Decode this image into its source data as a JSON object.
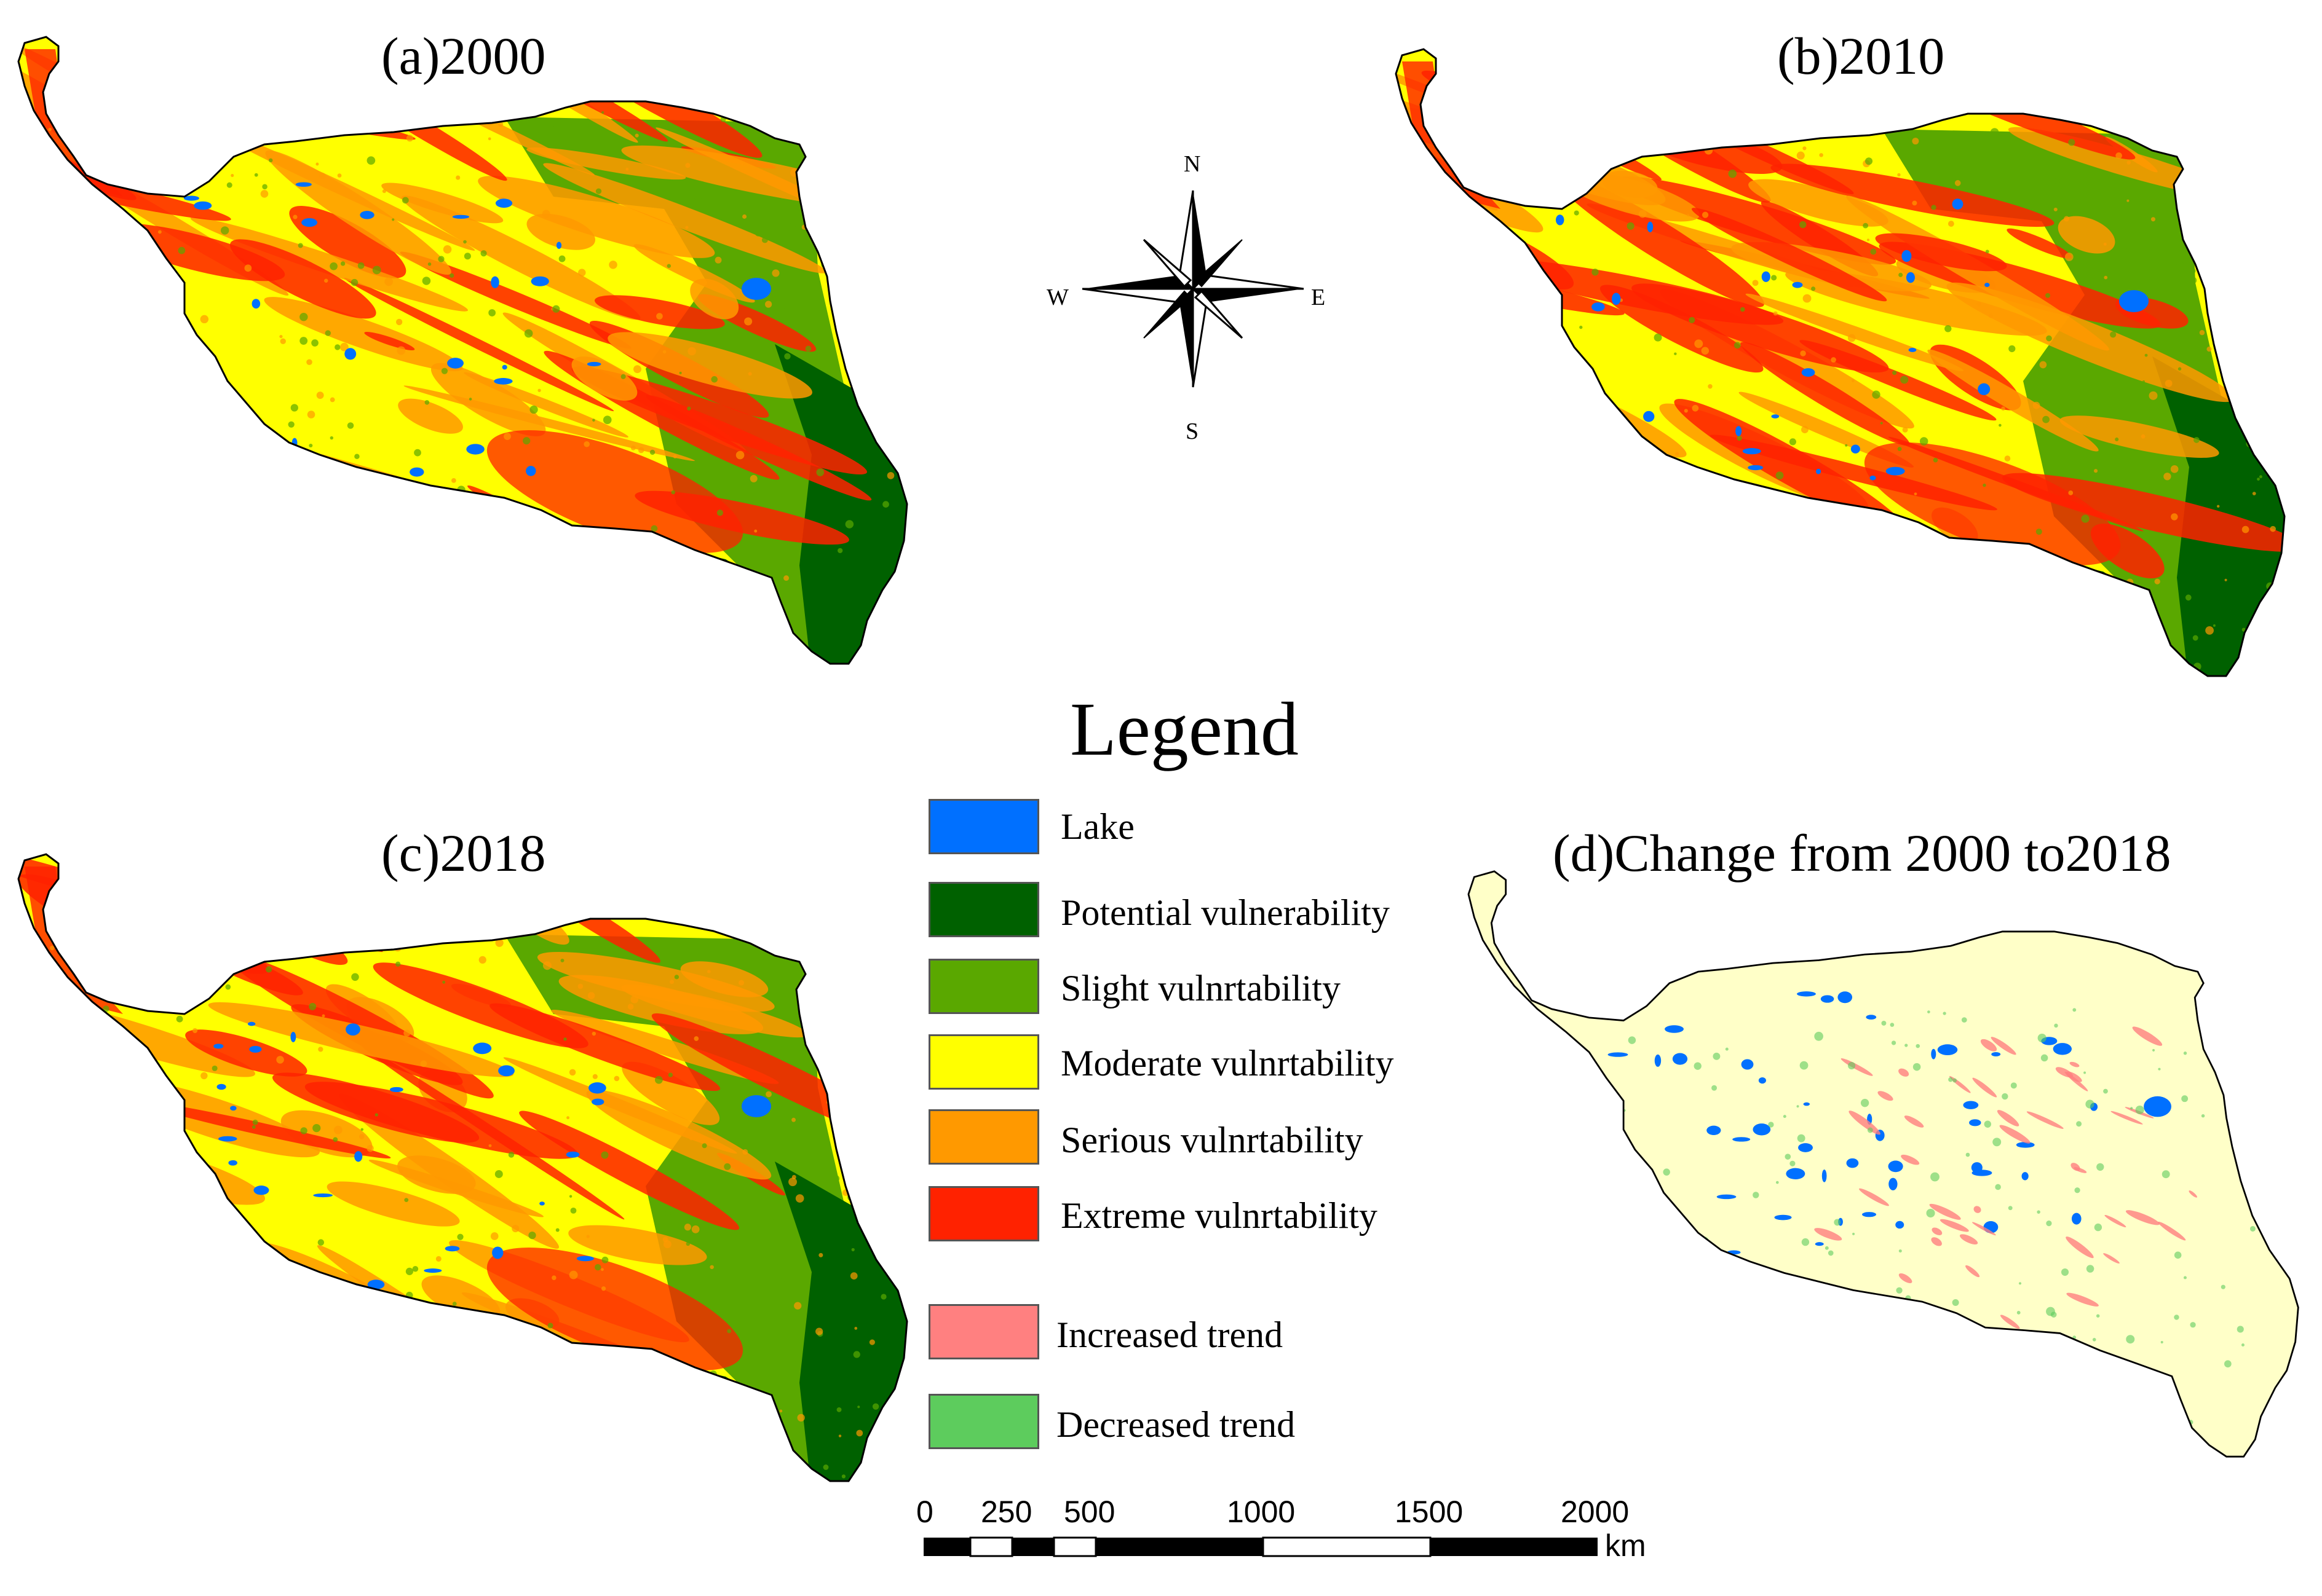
{
  "panels": [
    {
      "id": "a",
      "title": "(a)2000",
      "style": "vulnerability"
    },
    {
      "id": "b",
      "title": "(b)2010",
      "style": "vulnerability"
    },
    {
      "id": "c",
      "title": "(c)2018",
      "style": "vulnerability"
    },
    {
      "id": "d",
      "title": "(d)Change from 2000 to2018",
      "style": "change"
    }
  ],
  "compass": {
    "north": "N",
    "south": "S",
    "east": "E",
    "west": "W"
  },
  "legend": {
    "title": "Legend",
    "items": [
      {
        "label": "Lake",
        "color": "#0070ff"
      },
      {
        "label": "Potential vulnerability",
        "color": "#006100"
      },
      {
        "label": "Slight vulnrtability",
        "color": "#5aa800"
      },
      {
        "label": "Moderate vulnrtability",
        "color": "#ffff00"
      },
      {
        "label": "Serious vulnrtability",
        "color": "#ff9900"
      },
      {
        "label": "Extreme vulnrtability",
        "color": "#ff2200"
      },
      {
        "label": "Increased trend",
        "color": "#ff8080"
      },
      {
        "label": "Decreased trend",
        "color": "#5dcc5d"
      }
    ]
  },
  "scale_bar": {
    "ticks": [
      "0",
      "250",
      "500",
      "1000",
      "1500",
      "2000"
    ],
    "unit": "km"
  },
  "colors": {
    "lake": "#0070ff",
    "potential": "#006100",
    "slight": "#5aa800",
    "moderate": "#ffff00",
    "serious": "#ff9900",
    "extreme": "#ff2200",
    "increased": "#ff8080",
    "decreased": "#5dcc5d",
    "change_background": "#ffffc8"
  }
}
